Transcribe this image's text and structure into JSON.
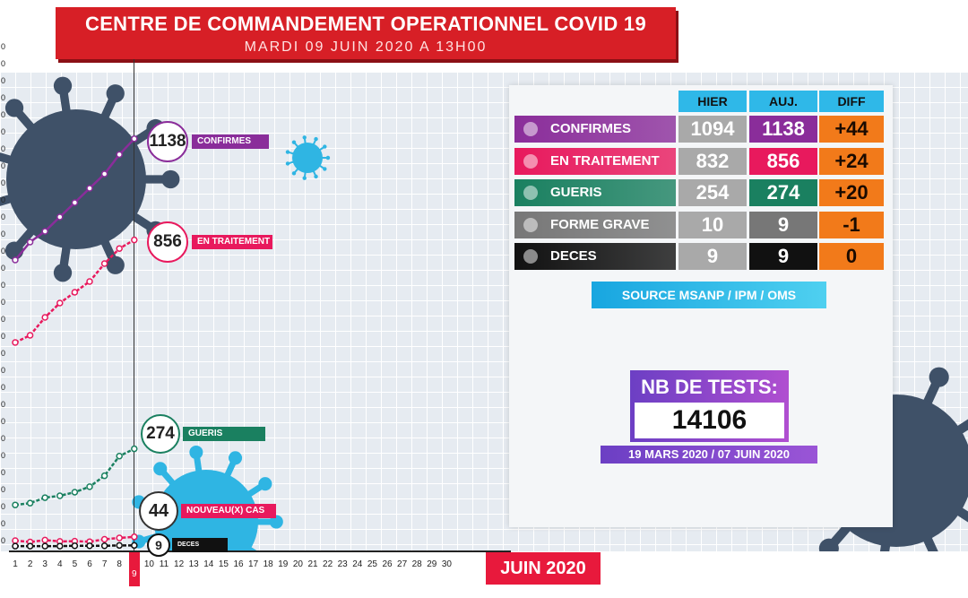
{
  "header": {
    "title": "CENTRE DE COMMANDEMENT OPERATIONNEL COVID 19",
    "subtitle": "MARDI 09 JUIN 2020 A 13H00"
  },
  "month_label": "JUIN 2020",
  "colors": {
    "confirmes": "#8a2d9a",
    "en_traitement": "#e8195d",
    "gueris": "#1a8060",
    "forme_grave": "#777777",
    "deces": "#111111",
    "diff": "#f27a1a",
    "header_blue": "#2fb8e8",
    "title_red": "#d71f26",
    "virus": "#3f5168",
    "virus_light": "#2fb5e3"
  },
  "table": {
    "headers": [
      "HIER",
      "AUJ.",
      "DIFF"
    ],
    "rows": [
      {
        "label": "CONFIRMES",
        "hier": "1094",
        "auj": "1138",
        "diff": "+44"
      },
      {
        "label": "EN TRAITEMENT",
        "hier": "832",
        "auj": "856",
        "diff": "+24"
      },
      {
        "label": "GUERIS",
        "hier": "254",
        "auj": "274",
        "diff": "+20"
      },
      {
        "label": "FORME GRAVE",
        "hier": "10",
        "auj": "9",
        "diff": "-1"
      },
      {
        "label": "DECES",
        "hier": "9",
        "auj": "9",
        "diff": "0"
      }
    ]
  },
  "source": "SOURCE MSANP / IPM / OMS",
  "tests": {
    "label": "NB DE TESTS:",
    "value": "14106",
    "range": "19 MARS 2020 / 07 JUIN 2020"
  },
  "chart_data": {
    "type": "line",
    "x": [
      1,
      2,
      3,
      4,
      5,
      6,
      7,
      8,
      9
    ],
    "x_ticks": [
      "1",
      "2",
      "3",
      "4",
      "5",
      "6",
      "7",
      "8",
      "9",
      "10",
      "11",
      "12",
      "13",
      "14",
      "15",
      "16",
      "17",
      "18",
      "19",
      "20",
      "21",
      "22",
      "23",
      "24",
      "25",
      "26",
      "27",
      "28",
      "29",
      "30"
    ],
    "highlighted_day": "9",
    "series": [
      {
        "name": "CONFIRMES",
        "values": [
          800,
          850,
          880,
          920,
          960,
          1000,
          1040,
          1094,
          1138
        ]
      },
      {
        "name": "EN TRAITEMENT",
        "values": [
          570,
          590,
          640,
          680,
          710,
          740,
          790,
          832,
          856
        ]
      },
      {
        "name": "GUERIS",
        "values": [
          120,
          125,
          140,
          145,
          155,
          170,
          200,
          254,
          274
        ]
      },
      {
        "name": "NOUVEAU(X) CAS",
        "values": [
          30,
          25,
          32,
          27,
          28,
          26,
          35,
          40,
          44
        ]
      },
      {
        "name": "DECES",
        "values": [
          7,
          7,
          7,
          7,
          8,
          8,
          8,
          9,
          9
        ]
      }
    ],
    "ylim": [
      0,
      1250
    ],
    "callouts": [
      {
        "series": "CONFIRMES",
        "value": "1138",
        "label": "CONFIRMES"
      },
      {
        "series": "EN TRAITEMENT",
        "value": "856",
        "label": "EN TRAITEMENT"
      },
      {
        "series": "GUERIS",
        "value": "274",
        "label": "GUERIS"
      },
      {
        "series": "NOUVEAU(X) CAS",
        "value": "44",
        "label": "NOUVEAU(X) CAS"
      },
      {
        "series": "DECES",
        "value": "9",
        "label": "DECES"
      }
    ]
  }
}
